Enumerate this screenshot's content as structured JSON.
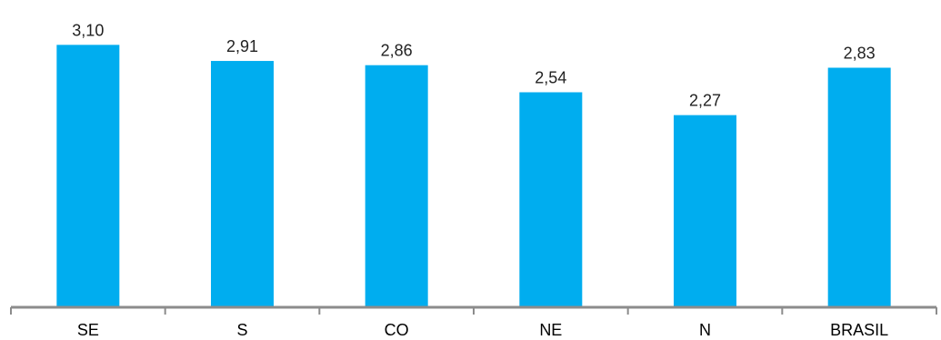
{
  "chart_data": {
    "type": "bar",
    "title": "",
    "xlabel": "",
    "ylabel": "",
    "categories": [
      "SE",
      "S",
      "CO",
      "NE",
      "N",
      "BRASIL"
    ],
    "values": [
      3.1,
      2.91,
      2.86,
      2.54,
      2.27,
      2.83
    ],
    "value_labels": [
      "3,10",
      "2,91",
      "2,86",
      "2,54",
      "2,27",
      "2,83"
    ],
    "ylim": [
      0,
      3.63
    ],
    "grid": false,
    "legend": "none",
    "bar_color": "#00ADEF",
    "axis_color": "#8C8C8C"
  }
}
